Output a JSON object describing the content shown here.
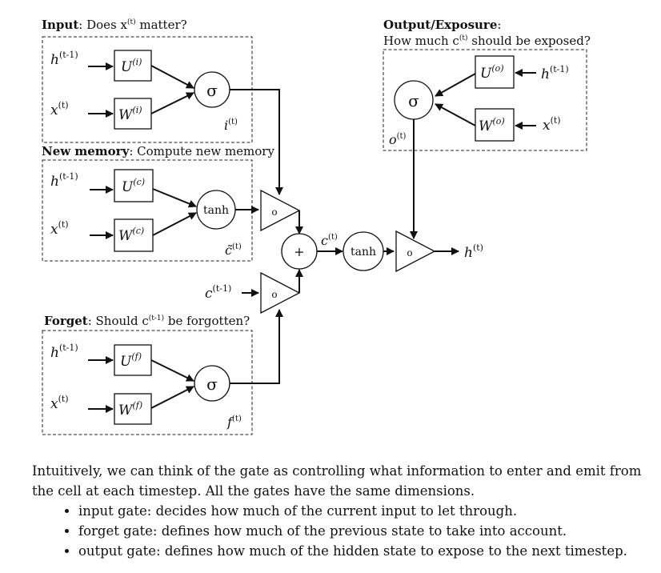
{
  "diagram": {
    "input_section": {
      "title_bold": "Input",
      "title_rest": ": Does x",
      "title_sup": "(t)",
      "title_end": " matter?",
      "h_label": "h",
      "h_sup": "(t-1)",
      "x_label": "x",
      "x_sup": "(t)",
      "u_label": "U",
      "u_sup": "(i)",
      "w_label": "W",
      "w_sup": "(i)",
      "gate_symbol": "σ",
      "out_label": "i",
      "out_sup": "(t)"
    },
    "memory_section": {
      "title_bold": "New memory",
      "title_rest": ": Compute new memory",
      "h_label": "h",
      "h_sup": "(t-1)",
      "x_label": "x",
      "x_sup": "(t)",
      "u_label": "U",
      "u_sup": "(c)",
      "w_label": "W",
      "w_sup": "(c)",
      "gate_symbol": "tanh",
      "out_label": "c̃",
      "out_sup": "(t)"
    },
    "forget_section": {
      "title_bold": "Forget",
      "title_rest": ": Should c",
      "title_sup": "(t-1)",
      "title_end": " be forgotten?",
      "h_label": "h",
      "h_sup": "(t-1)",
      "x_label": "x",
      "x_sup": "(t)",
      "u_label": "U",
      "u_sup": "(f)",
      "w_label": "W",
      "w_sup": "(f)",
      "gate_symbol": "σ",
      "out_label": "f",
      "out_sup": "(t)"
    },
    "output_section": {
      "title_bold": "Output/Exposure",
      "title_rest": ":",
      "subtitle": "How much c",
      "subtitle_sup": "(t)",
      "subtitle_end": " should be exposed?",
      "h_label": "h",
      "h_sup": "(t-1)",
      "x_label": "x",
      "x_sup": "(t)",
      "u_label": "U",
      "u_sup": "(o)",
      "w_label": "W",
      "w_sup": "(o)",
      "gate_symbol": "σ",
      "out_label": "o",
      "out_sup": "(t)"
    },
    "cell": {
      "prev_c_label": "c",
      "prev_c_sup": "(t-1)",
      "plus_symbol": "+",
      "c_label": "c",
      "c_sup": "(t)",
      "tanh_label": "tanh",
      "h_out_label": "h",
      "h_out_sup": "(t)",
      "hadamard_symbol": "o"
    }
  },
  "caption": {
    "paragraph": "Intuitively, we can think of the gate as controlling what information to enter and emit from the cell at each timestep. All the gates have the same dimensions.",
    "bullets": [
      "input gate: decides how much of the current input to let through.",
      "forget gate: defines how much of the previous state to take into account.",
      "output gate: defines how much of the hidden state to expose to the next timestep."
    ]
  }
}
